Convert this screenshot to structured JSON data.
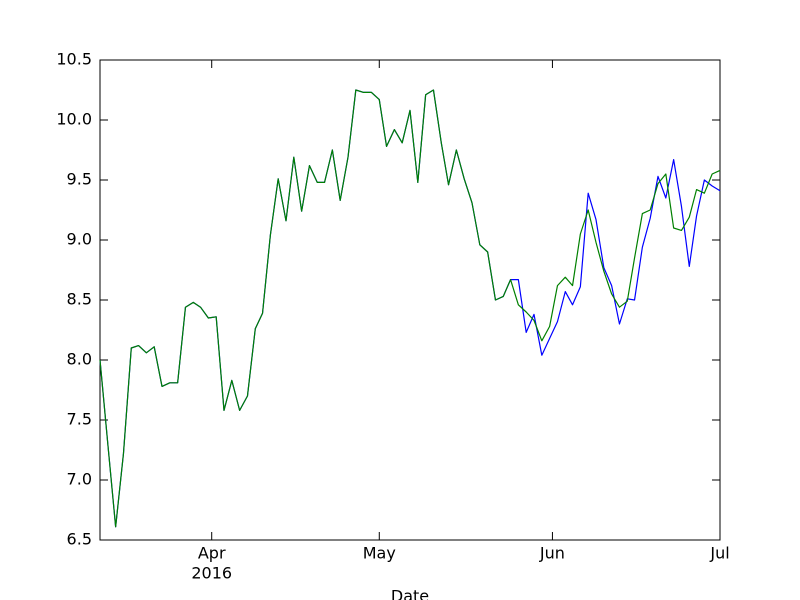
{
  "chart_data": {
    "type": "line",
    "xlabel": "Date",
    "x": [
      72.0,
      73.4,
      74.8,
      76.2,
      77.6,
      78.9,
      80.3,
      81.7,
      83.1,
      84.5,
      85.9,
      87.3,
      88.7,
      90.0,
      91.4,
      92.8,
      94.2,
      95.6,
      97.0,
      98.4,
      99.8,
      101.1,
      102.5,
      103.9,
      105.3,
      106.7,
      108.1,
      109.5,
      110.9,
      112.2,
      113.6,
      115.0,
      116.4,
      117.8,
      119.2,
      120.6,
      122.0,
      123.3,
      124.7,
      126.1,
      127.5,
      128.9,
      130.3,
      131.7,
      133.1,
      134.4,
      135.8,
      137.2,
      138.6,
      140.0,
      141.4,
      142.8,
      144.2,
      145.5,
      146.9,
      148.3,
      149.7,
      151.1,
      152.5,
      153.9,
      155.3,
      156.6,
      158.0,
      159.4,
      160.8,
      162.2,
      163.6,
      165.0,
      166.4,
      167.7,
      169.1,
      170.5,
      171.9,
      173.3,
      174.7,
      176.1,
      177.5,
      178.8,
      180.2,
      181.6,
      183.0
    ],
    "series": [
      {
        "color": "#0000ff",
        "values": [
          8.0,
          7.3,
          6.61,
          7.22,
          8.1,
          8.12,
          8.06,
          8.11,
          7.78,
          7.81,
          7.81,
          8.44,
          8.48,
          8.44,
          8.35,
          8.36,
          7.58,
          7.83,
          7.58,
          7.7,
          8.26,
          8.39,
          9.04,
          9.51,
          9.16,
          9.69,
          9.24,
          9.62,
          9.48,
          9.48,
          9.75,
          9.33,
          9.69,
          10.25,
          10.23,
          10.23,
          10.17,
          9.78,
          9.92,
          9.81,
          10.08,
          9.48,
          10.21,
          10.25,
          9.81,
          9.46,
          9.75,
          9.51,
          9.31,
          8.96,
          8.9,
          8.5,
          8.53,
          8.67,
          8.67,
          8.23,
          8.38,
          8.04,
          8.18,
          8.32,
          8.57,
          8.46,
          8.61,
          9.39,
          9.17,
          8.77,
          8.62,
          8.3,
          8.51,
          8.5,
          8.94,
          9.18,
          9.53,
          9.35,
          9.67,
          9.28,
          8.78,
          9.2,
          9.5,
          9.45,
          9.41
        ]
      },
      {
        "color": "#008000",
        "values": [
          8.0,
          7.3,
          6.61,
          7.22,
          8.1,
          8.12,
          8.06,
          8.11,
          7.78,
          7.81,
          7.81,
          8.44,
          8.48,
          8.44,
          8.35,
          8.36,
          7.58,
          7.83,
          7.58,
          7.7,
          8.26,
          8.39,
          9.04,
          9.51,
          9.16,
          9.69,
          9.24,
          9.62,
          9.48,
          9.48,
          9.75,
          9.33,
          9.69,
          10.25,
          10.23,
          10.23,
          10.17,
          9.78,
          9.92,
          9.81,
          10.08,
          9.48,
          10.21,
          10.25,
          9.81,
          9.46,
          9.75,
          9.51,
          9.31,
          8.96,
          8.9,
          8.5,
          8.53,
          8.67,
          8.46,
          8.4,
          8.33,
          8.16,
          8.28,
          8.62,
          8.69,
          8.62,
          9.05,
          9.25,
          8.98,
          8.74,
          8.55,
          8.44,
          8.49,
          8.85,
          9.22,
          9.25,
          9.47,
          9.55,
          9.1,
          9.08,
          9.19,
          9.42,
          9.39,
          9.55,
          9.58
        ]
      }
    ],
    "xlim": [
      72,
      183
    ],
    "xticks": [
      {
        "value": 92,
        "label": "Apr",
        "sublabel": "2016"
      },
      {
        "value": 122,
        "label": "May"
      },
      {
        "value": 153,
        "label": "Jun"
      },
      {
        "value": 183,
        "label": "Jul"
      }
    ],
    "ylim": [
      6.5,
      10.5
    ],
    "yticks": [
      6.5,
      {
        "value": 7,
        "label": "7.0"
      },
      7.5,
      {
        "value": 8,
        "label": "8.0"
      },
      8.5,
      {
        "value": 9,
        "label": "9.0"
      },
      9.5,
      {
        "value": 10,
        "label": "10.0"
      },
      10.5
    ],
    "grid": false
  }
}
